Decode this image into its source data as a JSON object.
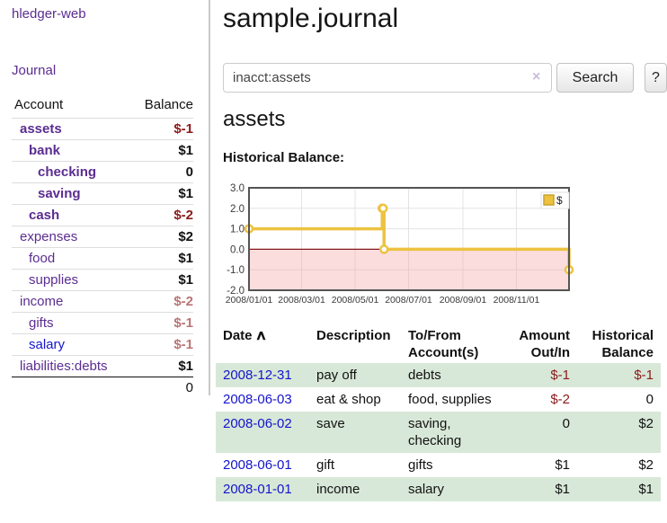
{
  "app": {
    "title": "hledger-web",
    "nav_journal": "Journal"
  },
  "sidebar": {
    "header": {
      "account": "Account",
      "balance": "Balance"
    },
    "accounts": [
      {
        "name": "assets",
        "depth": 1,
        "bold": true,
        "link_color": "purple",
        "balance": "$-1",
        "balance_style": "neg"
      },
      {
        "name": "bank",
        "depth": 2,
        "bold": true,
        "link_color": "purple",
        "balance": "$1",
        "balance_style": "pos"
      },
      {
        "name": "checking",
        "depth": 3,
        "bold": true,
        "link_color": "purple",
        "balance": "0",
        "balance_style": "pos"
      },
      {
        "name": "saving",
        "depth": 3,
        "bold": true,
        "link_color": "purple",
        "balance": "$1",
        "balance_style": "pos"
      },
      {
        "name": "cash",
        "depth": 2,
        "bold": true,
        "link_color": "purple",
        "balance": "$-2",
        "balance_style": "neg"
      },
      {
        "name": "expenses",
        "depth": 1,
        "bold": false,
        "link_color": "purple",
        "balance": "$2",
        "balance_style": "pos"
      },
      {
        "name": "food",
        "depth": 2,
        "bold": false,
        "link_color": "purple",
        "balance": "$1",
        "balance_style": "pos"
      },
      {
        "name": "supplies",
        "depth": 2,
        "bold": false,
        "link_color": "purple",
        "balance": "$1",
        "balance_style": "pos"
      },
      {
        "name": "income",
        "depth": 1,
        "bold": false,
        "link_color": "purple",
        "balance": "$-2",
        "balance_style": "dim"
      },
      {
        "name": "gifts",
        "depth": 2,
        "bold": false,
        "link_color": "purple",
        "balance": "$-1",
        "balance_style": "dim"
      },
      {
        "name": "salary",
        "depth": 2,
        "bold": false,
        "link_color": "blue",
        "balance": "$-1",
        "balance_style": "dim"
      },
      {
        "name": "liabilities:debts",
        "depth": 1,
        "bold": false,
        "link_color": "purple",
        "balance": "$1",
        "balance_style": "pos"
      }
    ],
    "total": "0"
  },
  "header": {
    "title": "sample.journal"
  },
  "search": {
    "value": "inacct:assets",
    "clear_icon": "×",
    "button": "Search",
    "help_button": "?"
  },
  "account_page": {
    "title": "assets",
    "chart_label": "Historical Balance:"
  },
  "chart_data": {
    "type": "line",
    "title": "Historical Balance:",
    "step": true,
    "series": [
      {
        "name": "$",
        "color": "#EDC240",
        "points": [
          {
            "date": "2008-01-01",
            "day": 0,
            "value": 1
          },
          {
            "date": "2008-06-01",
            "day": 152,
            "value": 2
          },
          {
            "date": "2008-06-02",
            "day": 153,
            "value": 2
          },
          {
            "date": "2008-06-03",
            "day": 154,
            "value": 0
          },
          {
            "date": "2008-12-31",
            "day": 365,
            "value": -1
          }
        ]
      }
    ],
    "x_ticks": [
      {
        "day": 0,
        "label": "2008/01/01"
      },
      {
        "day": 60,
        "label": "2008/03/01"
      },
      {
        "day": 121,
        "label": "2008/05/01"
      },
      {
        "day": 182,
        "label": "2008/07/01"
      },
      {
        "day": 244,
        "label": "2008/09/01"
      },
      {
        "day": 305,
        "label": "2008/11/01"
      }
    ],
    "y_ticks": [
      "3.0",
      "2.0",
      "1.0",
      "0.0",
      "-1.0",
      "-2.0"
    ],
    "xlim_days": [
      0,
      365
    ],
    "ylim": [
      -2,
      3
    ],
    "grid": true,
    "legend": {
      "label": "$",
      "position": "top-right"
    },
    "colors": {
      "line": "#EDC240",
      "marker_fill": "#ffffff",
      "negative_region": "rgba(244,170,170,0.40)",
      "zero_line": "#8b1a1a",
      "border": "#545454",
      "gridline": "#e3e3e3"
    }
  },
  "transactions": {
    "columns": [
      "Date",
      "Description",
      "To/From Account(s)",
      "Amount Out/In",
      "Historical Balance"
    ],
    "sort_indicator": "∧",
    "rows": [
      {
        "date": "2008-12-31",
        "description": "pay off",
        "accounts": "debts",
        "amount": "$-1",
        "balance": "$-1"
      },
      {
        "date": "2008-06-03",
        "description": "eat & shop",
        "accounts": "food, supplies",
        "amount": "$-2",
        "balance": "0"
      },
      {
        "date": "2008-06-02",
        "description": "save",
        "accounts": "saving, checking",
        "amount": "0",
        "balance": "$2"
      },
      {
        "date": "2008-06-01",
        "description": "gift",
        "accounts": "gifts",
        "amount": "$1",
        "balance": "$2"
      },
      {
        "date": "2008-01-01",
        "description": "income",
        "accounts": "salary",
        "amount": "$1",
        "balance": "$1"
      }
    ]
  }
}
